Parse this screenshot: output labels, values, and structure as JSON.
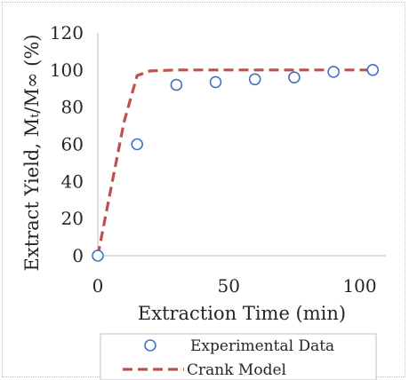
{
  "chart_data": {
    "type": "scatter",
    "title": "",
    "xlabel": "Extraction Time (min)",
    "ylabel": "Extract Yield, Mₜ/M∞ (%)",
    "xlim": [
      0,
      110
    ],
    "ylim": [
      0,
      120
    ],
    "xticks": [
      0,
      50,
      100
    ],
    "yticks": [
      0,
      20,
      40,
      60,
      80,
      100,
      120
    ],
    "x_tick_labels": [
      "0",
      "50",
      "100"
    ],
    "y_tick_labels": [
      "0",
      "20",
      "40",
      "60",
      "80",
      "100",
      "120"
    ],
    "grid": false,
    "legend_placement": "bottom",
    "series": [
      {
        "name": "Experimental Data",
        "kind": "scatter",
        "marker": "open-circle",
        "color": "#4472c4",
        "points": [
          {
            "x": 0,
            "y": 0
          },
          {
            "x": 15,
            "y": 60
          },
          {
            "x": 30,
            "y": 92
          },
          {
            "x": 45,
            "y": 93.5
          },
          {
            "x": 60,
            "y": 95
          },
          {
            "x": 75,
            "y": 96
          },
          {
            "x": 90,
            "y": 99
          },
          {
            "x": 105,
            "y": 100
          }
        ]
      },
      {
        "name": "Crank Model",
        "kind": "line",
        "style": "dashed",
        "color": "#c0504d",
        "points": [
          {
            "x": 0,
            "y": 0
          },
          {
            "x": 5,
            "y": 36
          },
          {
            "x": 10,
            "y": 72
          },
          {
            "x": 15,
            "y": 97
          },
          {
            "x": 20,
            "y": 99.5
          },
          {
            "x": 30,
            "y": 100
          },
          {
            "x": 105,
            "y": 100
          }
        ]
      }
    ]
  }
}
